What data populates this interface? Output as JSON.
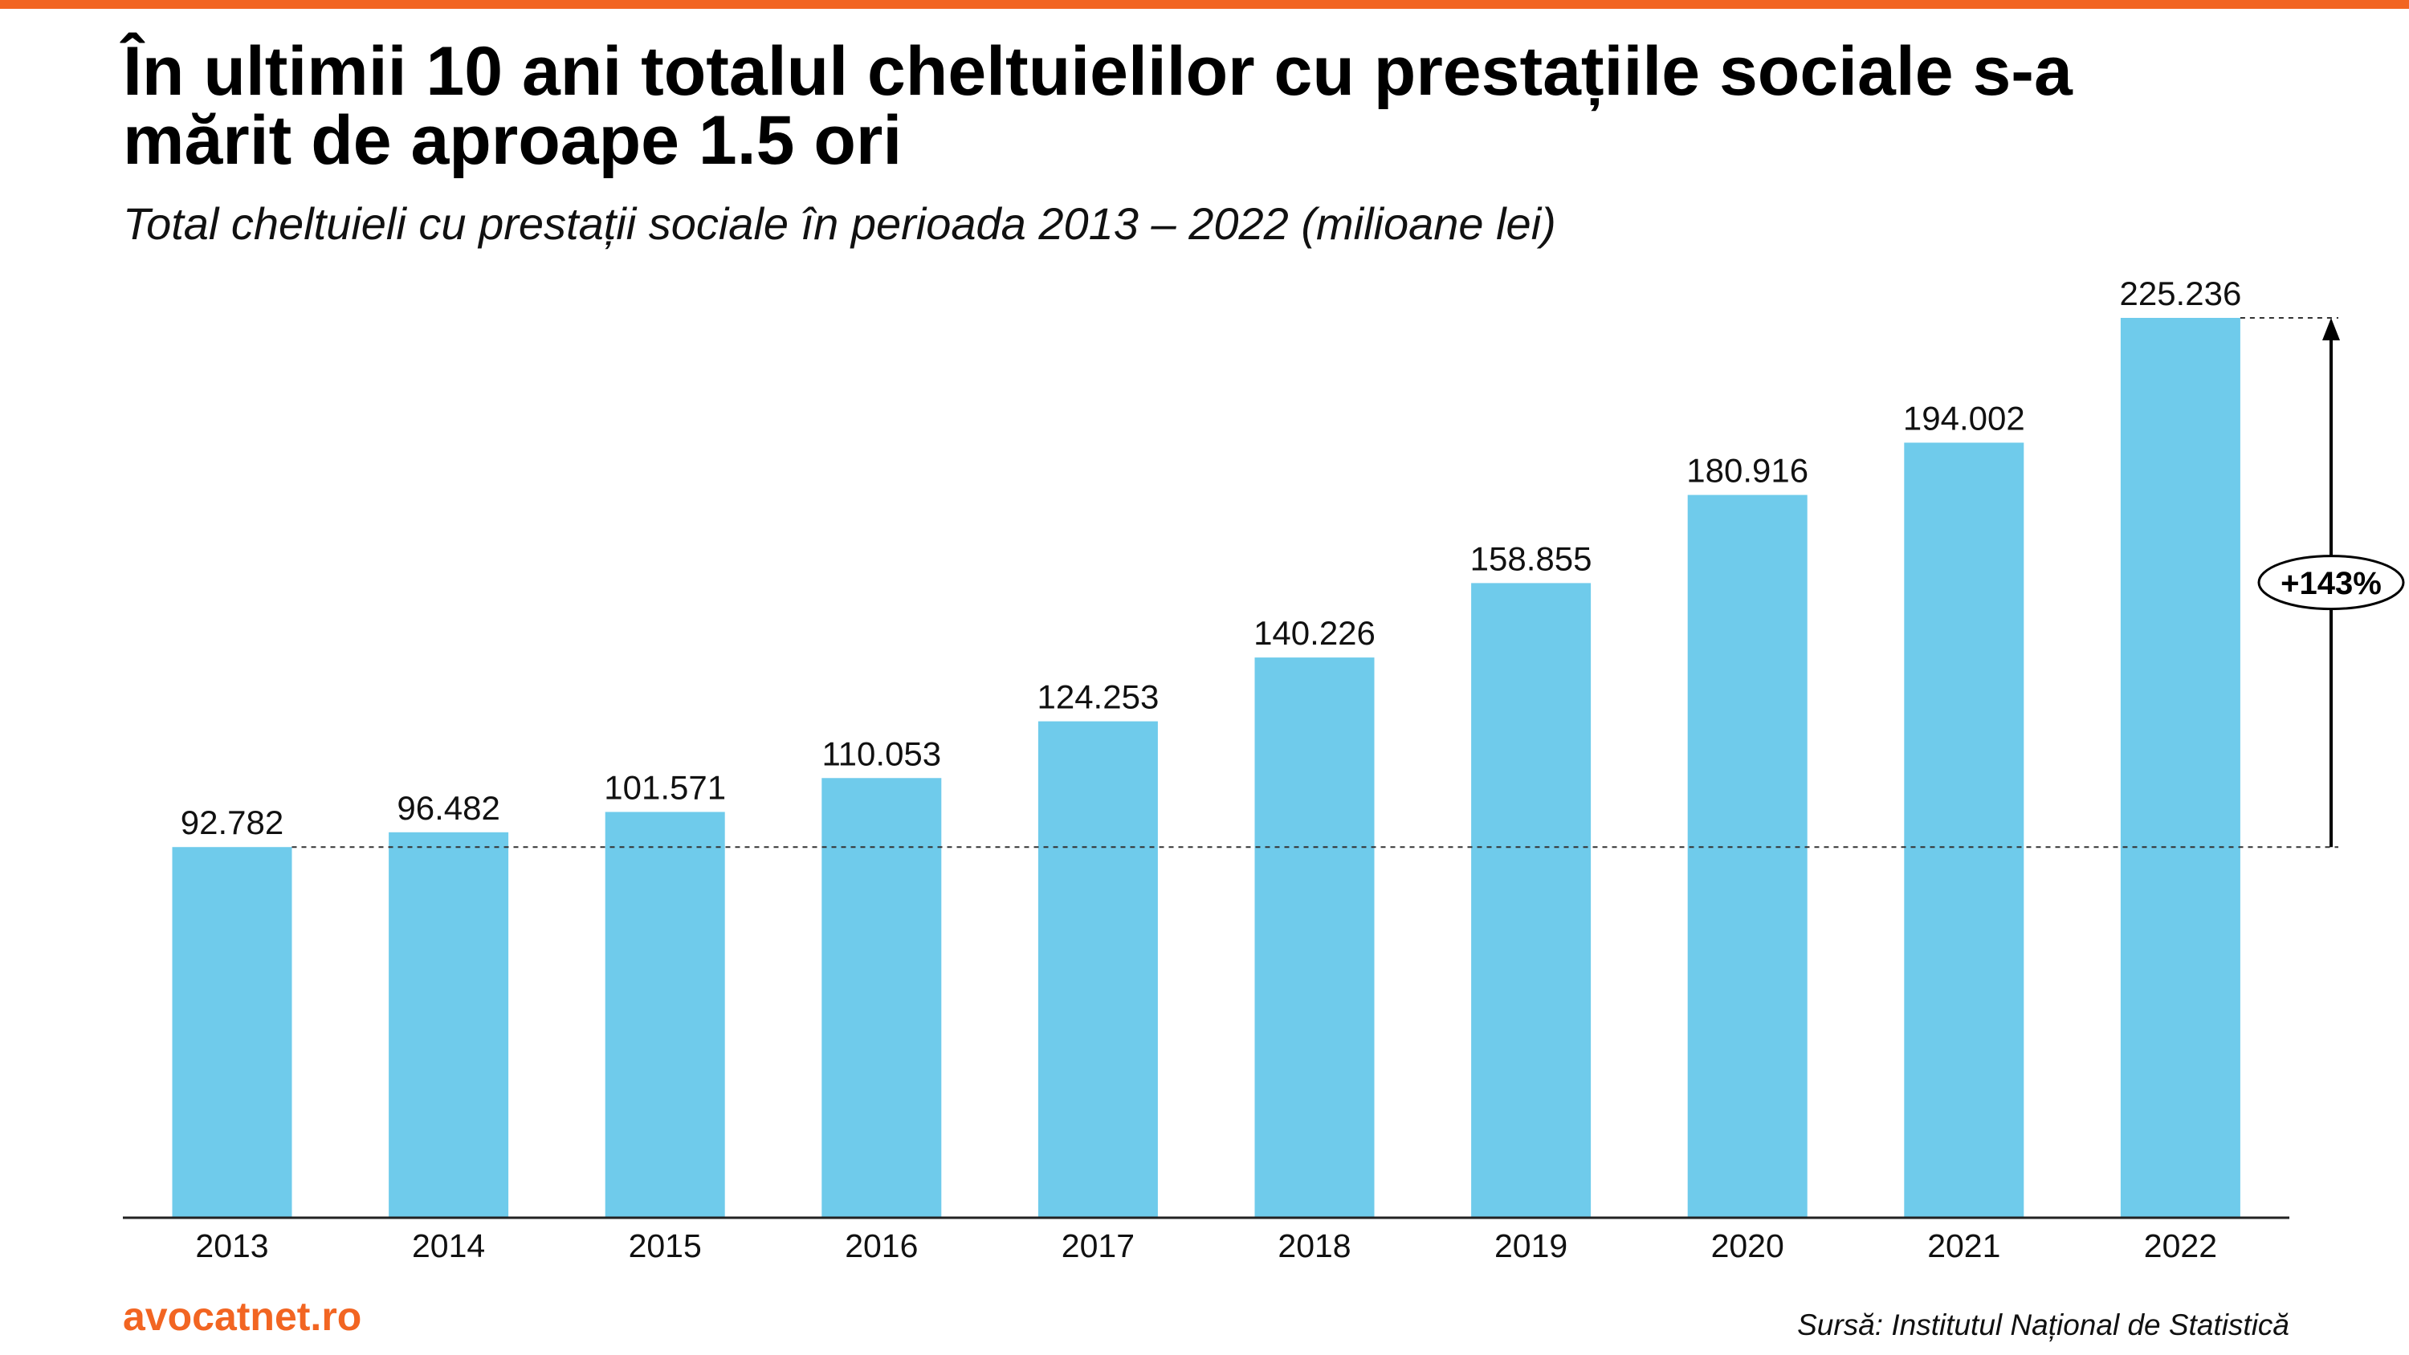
{
  "colors": {
    "accent": "#F26522",
    "bar": "#6FCBEB",
    "axis": "#222222"
  },
  "chart_data": {
    "type": "bar",
    "title": "În ultimii 10 ani totalul cheltuielilor cu prestațiile sociale s-a mărit de aproape 1.5 ori",
    "subtitle": "Total cheltuieli cu prestații sociale în perioada 2013 – 2022 (milioane lei)",
    "categories": [
      "2013",
      "2014",
      "2015",
      "2016",
      "2017",
      "2018",
      "2019",
      "2020",
      "2021",
      "2022"
    ],
    "values": [
      92782,
      96482,
      101571,
      110053,
      124253,
      140226,
      158855,
      180916,
      194002,
      225236
    ],
    "data_labels": [
      "92.782",
      "96.482",
      "101.571",
      "110.053",
      "124.253",
      "140.226",
      "158.855",
      "180.916",
      "194.002",
      "225.236"
    ],
    "grid": false,
    "annotation": {
      "label": "+143%",
      "from_value": 92782,
      "to_value": 225236
    }
  },
  "footer": {
    "brand": "avocatnet.ro",
    "source": "Sursă: Institutul Național de Statistică"
  }
}
